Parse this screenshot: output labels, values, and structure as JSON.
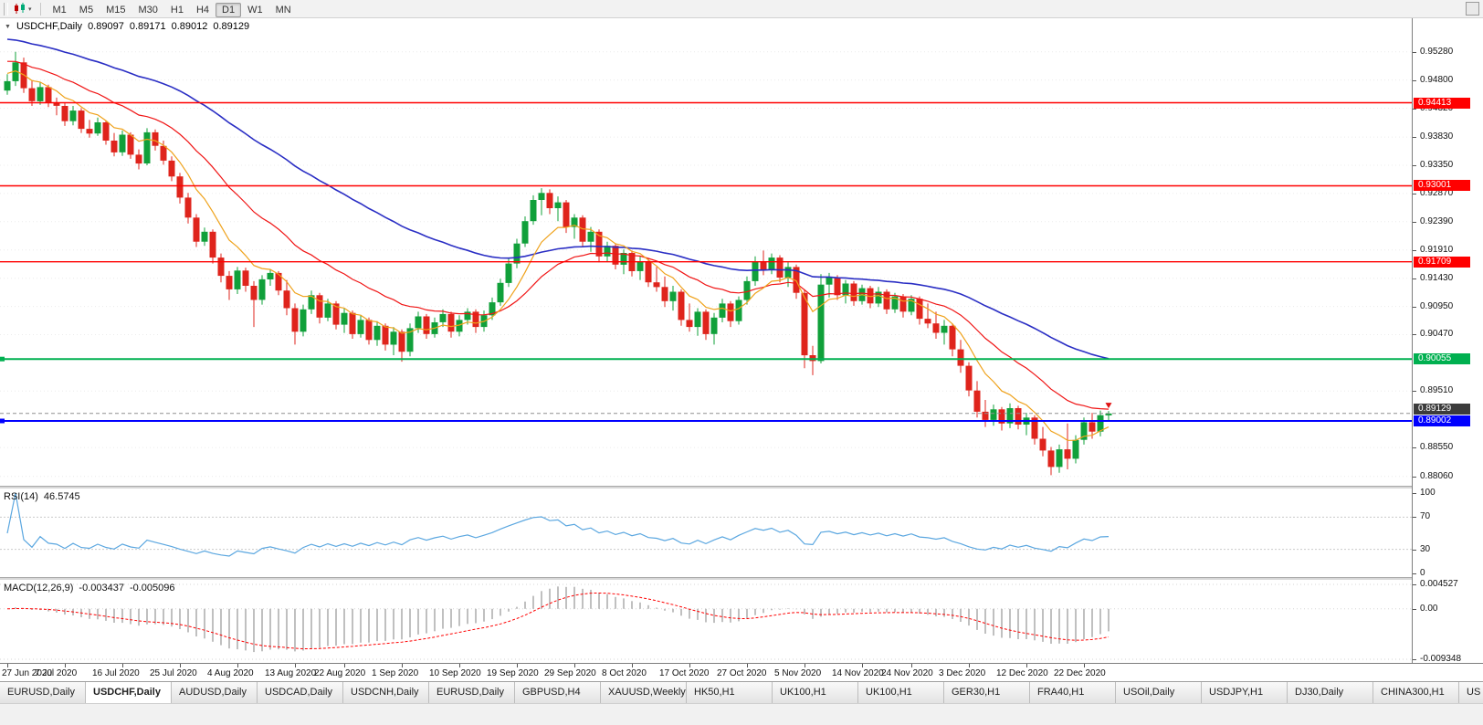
{
  "toolbar": {
    "timeframes": [
      "M1",
      "M5",
      "M15",
      "M30",
      "H1",
      "H4",
      "D1",
      "W1",
      "MN"
    ],
    "active_timeframe": "D1"
  },
  "chart_data": {
    "type": "candlestick",
    "symbol_label": "USDCHF,Daily",
    "ohlc": {
      "open": "0.89097",
      "high": "0.89171",
      "low": "0.89012",
      "close": "0.89129"
    },
    "price_scale": {
      "max": 0.9585,
      "min": 0.879
    },
    "price_axis": {
      "ticks": [
        "0.95280",
        "0.94800",
        "0.94320",
        "0.93830",
        "0.93350",
        "0.92870",
        "0.92390",
        "0.91910",
        "0.91430",
        "0.90950",
        "0.90470",
        "0.89510",
        "0.88550",
        "0.88060"
      ]
    },
    "levels": [
      {
        "name": "resistance-line-1",
        "label": "0.94413",
        "price": 0.94413,
        "color": "#ff0000",
        "width": 1.4,
        "handle": false
      },
      {
        "name": "resistance-line-2",
        "label": "0.93001",
        "price": 0.93001,
        "color": "#ff0000",
        "width": 1.4,
        "handle": false
      },
      {
        "name": "resistance-line-3",
        "label": "0.91709",
        "price": 0.91709,
        "color": "#ff0000",
        "width": 1.4,
        "handle": false
      },
      {
        "name": "support-line-green",
        "label": "0.90055",
        "price": 0.90055,
        "color": "#00b050",
        "width": 2,
        "handle": true
      },
      {
        "name": "support-line-blue",
        "label": "0.89002",
        "price": 0.89002,
        "color": "#0000ff",
        "width": 2,
        "handle": true
      }
    ],
    "current_price": {
      "label": "0.89129",
      "price": 0.89129
    },
    "date_axis": {
      "labels": [
        "27 Jun 2020",
        "7 Jul 2020",
        "16 Jul 2020",
        "25 Jul 2020",
        "4 Aug 2020",
        "13 Aug 2020",
        "22 Aug 2020",
        "1 Sep 2020",
        "10 Sep 2020",
        "19 Sep 2020",
        "29 Sep 2020",
        "8 Oct 2020",
        "17 Oct 2020",
        "27 Oct 2020",
        "5 Nov 2020",
        "14 Nov 2020",
        "24 Nov 2020",
        "3 Dec 2020",
        "12 Dec 2020",
        "22 Dec 2020"
      ],
      "bar_indices": [
        0,
        7,
        14,
        21,
        28,
        35,
        41,
        48,
        55,
        62,
        69,
        76,
        83,
        90,
        97,
        104,
        110,
        117,
        124,
        131
      ]
    },
    "candles": [
      [
        0.9462,
        0.949,
        0.9455,
        0.9478
      ],
      [
        0.9478,
        0.9528,
        0.947,
        0.951
      ],
      [
        0.951,
        0.9518,
        0.9458,
        0.9466
      ],
      [
        0.9466,
        0.948,
        0.9436,
        0.9444
      ],
      [
        0.9444,
        0.9476,
        0.9438,
        0.9468
      ],
      [
        0.9468,
        0.9472,
        0.9434,
        0.9441
      ],
      [
        0.9441,
        0.945,
        0.942,
        0.9436
      ],
      [
        0.9436,
        0.9442,
        0.9402,
        0.941
      ],
      [
        0.941,
        0.9436,
        0.9403,
        0.9428
      ],
      [
        0.9428,
        0.9432,
        0.939,
        0.9397
      ],
      [
        0.9397,
        0.9412,
        0.9382,
        0.9389
      ],
      [
        0.9389,
        0.9416,
        0.9385,
        0.9408
      ],
      [
        0.9408,
        0.9411,
        0.937,
        0.9377
      ],
      [
        0.9377,
        0.939,
        0.935,
        0.9357
      ],
      [
        0.9357,
        0.9394,
        0.9351,
        0.9387
      ],
      [
        0.9387,
        0.9391,
        0.9346,
        0.9353
      ],
      [
        0.9353,
        0.9362,
        0.9328,
        0.9338
      ],
      [
        0.9338,
        0.9398,
        0.9335,
        0.9391
      ],
      [
        0.9391,
        0.9396,
        0.936,
        0.9368
      ],
      [
        0.9368,
        0.9377,
        0.9336,
        0.9343
      ],
      [
        0.9343,
        0.935,
        0.9308,
        0.9316
      ],
      [
        0.9316,
        0.9322,
        0.927,
        0.928
      ],
      [
        0.928,
        0.9288,
        0.9236,
        0.9246
      ],
      [
        0.9246,
        0.9252,
        0.9196,
        0.9205
      ],
      [
        0.9205,
        0.9229,
        0.9198,
        0.9222
      ],
      [
        0.9222,
        0.9226,
        0.9168,
        0.9178
      ],
      [
        0.9178,
        0.9185,
        0.9136,
        0.9147
      ],
      [
        0.9147,
        0.9155,
        0.9106,
        0.9124
      ],
      [
        0.9124,
        0.9162,
        0.9116,
        0.9156
      ],
      [
        0.9156,
        0.9161,
        0.912,
        0.913
      ],
      [
        0.913,
        0.9138,
        0.906,
        0.9106
      ],
      [
        0.9106,
        0.9148,
        0.9098,
        0.9141
      ],
      [
        0.9141,
        0.9158,
        0.913,
        0.9152
      ],
      [
        0.9152,
        0.9155,
        0.9114,
        0.9122
      ],
      [
        0.9122,
        0.914,
        0.908,
        0.9092
      ],
      [
        0.9092,
        0.91,
        0.903,
        0.9052
      ],
      [
        0.9052,
        0.9098,
        0.9044,
        0.909
      ],
      [
        0.909,
        0.9122,
        0.9082,
        0.9114
      ],
      [
        0.9114,
        0.9118,
        0.9066,
        0.9076
      ],
      [
        0.9076,
        0.9108,
        0.907,
        0.91
      ],
      [
        0.91,
        0.9104,
        0.9056,
        0.9064
      ],
      [
        0.9064,
        0.9092,
        0.905,
        0.9084
      ],
      [
        0.9084,
        0.9088,
        0.904,
        0.9048
      ],
      [
        0.9048,
        0.908,
        0.9042,
        0.9072
      ],
      [
        0.9072,
        0.9076,
        0.903,
        0.9038
      ],
      [
        0.9038,
        0.907,
        0.9028,
        0.9062
      ],
      [
        0.9062,
        0.9066,
        0.902,
        0.903
      ],
      [
        0.903,
        0.906,
        0.9012,
        0.9052
      ],
      [
        0.9052,
        0.9056,
        0.9001,
        0.9018
      ],
      [
        0.9018,
        0.9066,
        0.901,
        0.9058
      ],
      [
        0.9058,
        0.9086,
        0.905,
        0.9078
      ],
      [
        0.9078,
        0.9082,
        0.904,
        0.9048
      ],
      [
        0.9048,
        0.9076,
        0.9042,
        0.9068
      ],
      [
        0.9068,
        0.909,
        0.906,
        0.9082
      ],
      [
        0.9082,
        0.9086,
        0.9042,
        0.9052
      ],
      [
        0.9052,
        0.908,
        0.9044,
        0.9072
      ],
      [
        0.9072,
        0.9092,
        0.9064,
        0.9086
      ],
      [
        0.9086,
        0.909,
        0.905,
        0.906
      ],
      [
        0.906,
        0.9088,
        0.9052,
        0.908
      ],
      [
        0.908,
        0.911,
        0.9072,
        0.9102
      ],
      [
        0.9102,
        0.9142,
        0.9096,
        0.9135
      ],
      [
        0.9135,
        0.9176,
        0.9128,
        0.9168
      ],
      [
        0.9168,
        0.921,
        0.916,
        0.9202
      ],
      [
        0.9202,
        0.9248,
        0.9196,
        0.924
      ],
      [
        0.924,
        0.9284,
        0.9234,
        0.9276
      ],
      [
        0.9276,
        0.9296,
        0.925,
        0.9288
      ],
      [
        0.9288,
        0.9294,
        0.9252,
        0.9262
      ],
      [
        0.9262,
        0.9282,
        0.924,
        0.9272
      ],
      [
        0.9272,
        0.9276,
        0.922,
        0.923
      ],
      [
        0.923,
        0.9252,
        0.921,
        0.9246
      ],
      [
        0.9246,
        0.925,
        0.9196,
        0.9205
      ],
      [
        0.9205,
        0.923,
        0.9188,
        0.9222
      ],
      [
        0.9222,
        0.9226,
        0.917,
        0.918
      ],
      [
        0.918,
        0.9205,
        0.9172,
        0.9198
      ],
      [
        0.9198,
        0.9202,
        0.9158,
        0.9166
      ],
      [
        0.9166,
        0.9192,
        0.915,
        0.9186
      ],
      [
        0.9186,
        0.919,
        0.9146,
        0.9155
      ],
      [
        0.9155,
        0.918,
        0.914,
        0.9172
      ],
      [
        0.9172,
        0.9176,
        0.9128,
        0.9136
      ],
      [
        0.9136,
        0.9162,
        0.912,
        0.9128
      ],
      [
        0.9128,
        0.9146,
        0.9094,
        0.9104
      ],
      [
        0.9104,
        0.913,
        0.9088,
        0.912
      ],
      [
        0.912,
        0.9124,
        0.9062,
        0.9072
      ],
      [
        0.9072,
        0.91,
        0.9052,
        0.906
      ],
      [
        0.906,
        0.9092,
        0.9045,
        0.9086
      ],
      [
        0.9086,
        0.909,
        0.9038,
        0.9048
      ],
      [
        0.9048,
        0.9084,
        0.903,
        0.9076
      ],
      [
        0.9076,
        0.9108,
        0.9068,
        0.91
      ],
      [
        0.91,
        0.9104,
        0.906,
        0.907
      ],
      [
        0.907,
        0.9112,
        0.9064,
        0.9106
      ],
      [
        0.9106,
        0.9146,
        0.9098,
        0.9138
      ],
      [
        0.9138,
        0.918,
        0.913,
        0.9172
      ],
      [
        0.9172,
        0.919,
        0.9148,
        0.9158
      ],
      [
        0.9158,
        0.9185,
        0.915,
        0.9178
      ],
      [
        0.9178,
        0.9182,
        0.9136,
        0.9144
      ],
      [
        0.9144,
        0.917,
        0.9128,
        0.9162
      ],
      [
        0.9162,
        0.9166,
        0.9108,
        0.9118
      ],
      [
        0.9118,
        0.9124,
        0.899,
        0.9012
      ],
      [
        0.9012,
        0.9028,
        0.8978,
        0.9002
      ],
      [
        0.9002,
        0.915,
        0.8998,
        0.9132
      ],
      [
        0.9132,
        0.9152,
        0.911,
        0.9144
      ],
      [
        0.9144,
        0.9148,
        0.9106,
        0.9114
      ],
      [
        0.9114,
        0.914,
        0.91,
        0.9134
      ],
      [
        0.9134,
        0.9138,
        0.9096,
        0.9104
      ],
      [
        0.9104,
        0.9132,
        0.9098,
        0.9126
      ],
      [
        0.9126,
        0.913,
        0.9092,
        0.91
      ],
      [
        0.91,
        0.9128,
        0.9094,
        0.912
      ],
      [
        0.912,
        0.9124,
        0.9082,
        0.909
      ],
      [
        0.909,
        0.9118,
        0.9084,
        0.9112
      ],
      [
        0.9112,
        0.9116,
        0.9076,
        0.9086
      ],
      [
        0.9086,
        0.9114,
        0.908,
        0.9108
      ],
      [
        0.9108,
        0.9112,
        0.9064,
        0.9074
      ],
      [
        0.9074,
        0.91,
        0.9058,
        0.9066
      ],
      [
        0.9066,
        0.9086,
        0.904,
        0.905
      ],
      [
        0.905,
        0.9072,
        0.903,
        0.9062
      ],
      [
        0.9062,
        0.9066,
        0.901,
        0.9022
      ],
      [
        0.9022,
        0.9038,
        0.8982,
        0.8994
      ],
      [
        0.8994,
        0.9,
        0.8942,
        0.8952
      ],
      [
        0.8952,
        0.8968,
        0.8906,
        0.8916
      ],
      [
        0.8916,
        0.8936,
        0.889,
        0.8902
      ],
      [
        0.8902,
        0.8928,
        0.8892,
        0.892
      ],
      [
        0.892,
        0.8924,
        0.8884,
        0.8896
      ],
      [
        0.8896,
        0.893,
        0.8888,
        0.8922
      ],
      [
        0.8922,
        0.8926,
        0.8886,
        0.8894
      ],
      [
        0.8894,
        0.8914,
        0.8876,
        0.8906
      ],
      [
        0.8906,
        0.891,
        0.886,
        0.887
      ],
      [
        0.887,
        0.889,
        0.884,
        0.885
      ],
      [
        0.885,
        0.8856,
        0.8808,
        0.8822
      ],
      [
        0.8822,
        0.886,
        0.8812,
        0.8852
      ],
      [
        0.8852,
        0.8896,
        0.8818,
        0.8836
      ],
      [
        0.8836,
        0.8876,
        0.8828,
        0.8868
      ],
      [
        0.8868,
        0.8906,
        0.886,
        0.8898
      ],
      [
        0.8898,
        0.8914,
        0.887,
        0.8882
      ],
      [
        0.8882,
        0.8918,
        0.8874,
        0.891
      ],
      [
        0.89097,
        0.89171,
        0.89012,
        0.89129
      ]
    ]
  },
  "rsi": {
    "label": "RSI(14)",
    "value": "46.5745",
    "axis_ticks": [
      "100",
      "70",
      "30",
      "0"
    ],
    "levels": [
      70,
      30
    ]
  },
  "macd": {
    "label": "MACD(12,26,9)",
    "value_main": "-0.003437",
    "value_signal": "-0.005096",
    "axis_ticks": [
      "0.004527",
      "0.00",
      "-0.009348"
    ]
  },
  "tabs": {
    "active_index": 1,
    "items": [
      {
        "label": "EURUSD,Daily"
      },
      {
        "label": "USDCHF,Daily"
      },
      {
        "label": "AUDUSD,Daily"
      },
      {
        "label": "USDCAD,Daily"
      },
      {
        "label": "USDCNH,Daily"
      },
      {
        "label": "EURUSD,Daily"
      },
      {
        "label": "GBPUSD,H4"
      },
      {
        "label": "XAUUSD,Weekly"
      },
      {
        "label": "HK50,H1"
      },
      {
        "label": "UK100,H1"
      },
      {
        "label": "UK100,H1"
      },
      {
        "label": "GER30,H1"
      },
      {
        "label": "FRA40,H1"
      },
      {
        "label": "USOil,Daily"
      },
      {
        "label": "USDJPY,H1"
      },
      {
        "label": "DJ30,Daily"
      },
      {
        "label": "CHINA300,H1"
      },
      {
        "label": "US"
      }
    ]
  },
  "colors": {
    "bull": "#10a03a",
    "bear": "#df241c",
    "ma_fast": "#efa21b",
    "ma_mid": "#f01515",
    "ma_slow": "#2a2ec4",
    "rsi": "#5ba7e0",
    "macd_hist": "#ababab",
    "macd_signal": "#ff0000",
    "current_price_label_bg": "#3c3c3c"
  }
}
